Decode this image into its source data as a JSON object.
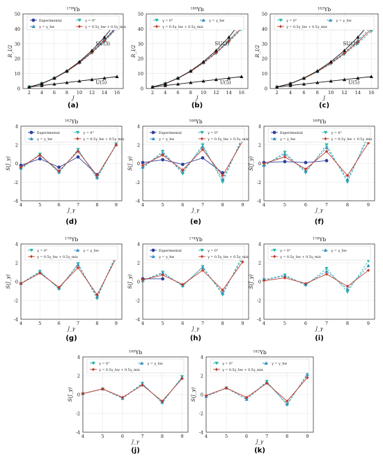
{
  "figure": {
    "captions": [
      "(a)",
      "(b)",
      "(c)",
      "(d)",
      "(e)",
      "(f)",
      "(g)",
      "(h)",
      "(i)",
      "(j)",
      "(k)"
    ]
  },
  "colors": {
    "experimental": "#2c3f9e",
    "gamma_zero": "#2ab7a9",
    "gamma_hw": "#3a8fbf",
    "gamma_mix": "#c0392b",
    "gamma_top": "#111111",
    "u5": "#111111"
  },
  "chart_data": [
    {
      "type": "line",
      "title": "178Yb",
      "xlabel": "J",
      "ylabel": "R_I/2",
      "xlim": [
        1,
        17
      ],
      "ylim": [
        0,
        50
      ],
      "xticks": [
        2,
        4,
        6,
        8,
        10,
        12,
        14,
        16
      ],
      "yticks": [
        0,
        10,
        20,
        30,
        40,
        50
      ],
      "x": [
        2,
        4,
        6,
        8,
        10,
        12,
        14,
        16
      ],
      "annotations": [
        {
          "text": "SU(3)",
          "x": 12.6,
          "y": 29
        },
        {
          "text": "U(5)",
          "x": 12.6,
          "y": 3
        }
      ],
      "legend": [
        "Experimental",
        "γ = 0°",
        "γ = γ_hw",
        "γ = 0.5γ_hw + 0.5γ_mix"
      ],
      "series": [
        {
          "name": "Experimental",
          "style": "exp",
          "values": [
            1,
            3.3,
            6.9,
            11.5,
            17.4,
            24.4,
            32.3,
            41.5
          ]
        },
        {
          "name": "γ = 0°",
          "style": "zero",
          "values": [
            1,
            3.3,
            6.8,
            11.4,
            17.1,
            23.8,
            31.5,
            40.1
          ]
        },
        {
          "name": "γ = γ_hw",
          "style": "hw",
          "values": [
            1,
            3.3,
            6.9,
            11.6,
            17.5,
            24.6,
            32.9,
            42.2
          ]
        },
        {
          "name": "γ = 0.5γ_hw + 0.5γ_mix",
          "style": "mix",
          "values": [
            1,
            3.3,
            6.9,
            11.5,
            17.3,
            24.2,
            32.1,
            41
          ]
        },
        {
          "name": "",
          "style": "top",
          "values": [
            1,
            3.3,
            7,
            11.8,
            18,
            25.5,
            34.4,
            45
          ]
        },
        {
          "name": "",
          "style": "u5",
          "values": [
            1,
            2,
            3,
            4,
            5,
            6,
            7,
            8
          ]
        }
      ]
    },
    {
      "type": "line",
      "title": "180Yb",
      "xlabel": "J",
      "ylabel": "R_I/2",
      "xlim": [
        1,
        17
      ],
      "ylim": [
        0,
        50
      ],
      "xticks": [
        2,
        4,
        6,
        8,
        10,
        12,
        14,
        16
      ],
      "yticks": [
        0,
        10,
        20,
        30,
        40,
        50
      ],
      "x": [
        2,
        4,
        6,
        8,
        10,
        12,
        14,
        16
      ],
      "annotations": [
        {
          "text": "SU(3)",
          "x": 11.8,
          "y": 29
        },
        {
          "text": "U(5)",
          "x": 12.6,
          "y": 3
        }
      ],
      "legend": [
        "γ = 0°",
        "γ = γ_hw",
        "γ = 0.5γ_hw + 0.5γ_mix"
      ],
      "series": [
        {
          "name": "γ = 0°",
          "style": "zero",
          "values": [
            1,
            3.3,
            6.8,
            11.4,
            17,
            23.6,
            31.2,
            39.7
          ]
        },
        {
          "name": "γ = γ_hw",
          "style": "hw",
          "values": [
            1,
            3.3,
            6.9,
            11.6,
            17.4,
            24.4,
            32.5,
            41.6
          ]
        },
        {
          "name": "γ = 0.5γ_hw + 0.5γ_mix",
          "style": "mix",
          "values": [
            1,
            3.3,
            6.9,
            11.5,
            17.2,
            24,
            31.8,
            40.5
          ]
        },
        {
          "name": "",
          "style": "top",
          "values": [
            1,
            3.3,
            7,
            11.8,
            18,
            25.5,
            34.4,
            45
          ]
        },
        {
          "name": "",
          "style": "u5",
          "values": [
            1,
            2,
            3,
            4,
            5,
            6,
            7,
            8
          ]
        }
      ]
    },
    {
      "type": "line",
      "title": "182Yb",
      "xlabel": "J",
      "ylabel": "R_I/2",
      "xlim": [
        1,
        17
      ],
      "ylim": [
        0,
        50
      ],
      "xticks": [
        2,
        4,
        6,
        8,
        10,
        12,
        14,
        16
      ],
      "yticks": [
        0,
        10,
        20,
        30,
        40,
        50
      ],
      "x": [
        2,
        4,
        6,
        8,
        10,
        12,
        14,
        16
      ],
      "annotations": [
        {
          "text": "SU(3)",
          "x": 11.8,
          "y": 29
        },
        {
          "text": "U(5)",
          "x": 12.6,
          "y": 3
        }
      ],
      "legend": [
        "γ = 0°",
        "γ = γ_hw",
        "γ = 0.5γ_hw + 0.5γ_mix"
      ],
      "series": [
        {
          "name": "γ = 0°",
          "style": "zero",
          "values": [
            1,
            3.3,
            6.7,
            11.2,
            16.6,
            23,
            30.2,
            38.4
          ]
        },
        {
          "name": "γ = γ_hw",
          "style": "hw",
          "values": [
            1,
            3.3,
            6.9,
            11.5,
            17.3,
            24.2,
            32.2,
            41.2
          ]
        },
        {
          "name": "γ = 0.5γ_hw + 0.5γ_mix",
          "style": "mix",
          "values": [
            1,
            3.3,
            6.8,
            11.4,
            17,
            23.6,
            31.2,
            39.8
          ]
        },
        {
          "name": "",
          "style": "top",
          "values": [
            1,
            3.3,
            7,
            11.8,
            18,
            25.5,
            34.4,
            45
          ]
        },
        {
          "name": "",
          "style": "u5",
          "values": [
            1,
            2,
            3,
            4,
            5,
            6,
            7,
            8
          ]
        }
      ]
    },
    {
      "type": "line",
      "title": "162Yb",
      "xlabel": "J_γ",
      "ylabel": "S(J_γ)",
      "xlim": [
        4,
        9.3
      ],
      "ylim": [
        -4,
        4
      ],
      "xticks": [
        4,
        5,
        6,
        7,
        8,
        9
      ],
      "yticks": [
        -4,
        -2,
        0,
        2,
        4
      ],
      "x": [
        4,
        5,
        6,
        7,
        8,
        9
      ],
      "legend": [
        "Experimental",
        "γ = 0°",
        "γ = γ_hw",
        "γ = 0.5γ_hw + 0.5γ_mix"
      ],
      "series": [
        {
          "name": "Experimental",
          "style": "exp",
          "x": [
            4,
            5,
            6,
            7,
            8
          ],
          "values": [
            -0.2,
            0.5,
            -0.4,
            0.7,
            -1.2
          ]
        },
        {
          "name": "γ = 0°",
          "style": "zero",
          "values": [
            -0.6,
            1,
            -1,
            1.5,
            -1.6,
            2.1
          ]
        },
        {
          "name": "γ = γ_hw",
          "style": "hw",
          "values": [
            -0.5,
            0.9,
            -0.9,
            1.4,
            -1.5,
            2
          ]
        },
        {
          "name": "γ = 0.5γ_hw + 0.5γ_mix",
          "style": "mix",
          "values": [
            -0.4,
            0.9,
            -0.8,
            1.3,
            -1.3,
            2
          ]
        }
      ]
    },
    {
      "type": "line",
      "title": "166Yb",
      "xlabel": "J_γ",
      "ylabel": "S(J_γ)",
      "xlim": [
        4,
        9.3
      ],
      "ylim": [
        -4,
        4
      ],
      "xticks": [
        4,
        5,
        6,
        7,
        8,
        9
      ],
      "yticks": [
        -4,
        -2,
        0,
        2,
        4
      ],
      "x": [
        4,
        5,
        6,
        7,
        8,
        9
      ],
      "legend": [
        "Experimental",
        "γ = 0°",
        "γ = γ_hw",
        "γ = 0.5γ_hw + 0.5γ_mix"
      ],
      "series": [
        {
          "name": "Experimental",
          "style": "exp",
          "x": [
            4,
            5,
            6,
            7,
            8
          ],
          "values": [
            0.1,
            0.4,
            -0.1,
            0.6,
            -1
          ]
        },
        {
          "name": "γ = 0°",
          "style": "zero",
          "values": [
            -0.5,
            1.3,
            -1.1,
            2,
            -2,
            2.9
          ]
        },
        {
          "name": "γ = γ_hw",
          "style": "hw",
          "values": [
            -0.4,
            1.1,
            -0.9,
            1.8,
            -1.7,
            2.7
          ]
        },
        {
          "name": "γ = 0.5γ_hw + 0.5γ_mix",
          "style": "mix",
          "values": [
            -0.2,
            0.9,
            -0.7,
            1.5,
            -1.3,
            2.4
          ]
        }
      ]
    },
    {
      "type": "line",
      "title": "168Yb",
      "xlabel": "J_γ",
      "ylabel": "S(J_γ)",
      "xlim": [
        4,
        9.3
      ],
      "ylim": [
        -4,
        4
      ],
      "xticks": [
        4,
        5,
        6,
        7,
        8,
        9
      ],
      "yticks": [
        -4,
        -2,
        0,
        2,
        4
      ],
      "x": [
        4,
        5,
        6,
        7,
        8,
        9
      ],
      "legend": [
        "Experimental",
        "γ = 0°",
        "γ = γ_hw",
        "γ = 0.5γ_hw + 0.5γ_mix"
      ],
      "series": [
        {
          "name": "Experimental",
          "style": "exp",
          "x": [
            4,
            5,
            6,
            7
          ],
          "values": [
            0.1,
            0.2,
            0.1,
            0.3
          ]
        },
        {
          "name": "γ = 0°",
          "style": "zero",
          "values": [
            -0.3,
            1.2,
            -1,
            2,
            -2,
            3.1
          ]
        },
        {
          "name": "γ = γ_hw",
          "style": "hw",
          "values": [
            -0.2,
            1,
            -0.8,
            1.7,
            -1.7,
            2.8
          ]
        },
        {
          "name": "γ = 0.5γ_hw + 0.5γ_mix",
          "style": "mix",
          "values": [
            0,
            0.7,
            -0.6,
            1.3,
            -1.3,
            2.2
          ]
        }
      ]
    },
    {
      "type": "line",
      "title": "170Yb",
      "xlabel": "J_γ",
      "ylabel": "S(J_γ)",
      "xlim": [
        4,
        9.3
      ],
      "ylim": [
        -4,
        4
      ],
      "xticks": [
        4,
        5,
        6,
        7,
        8,
        9
      ],
      "yticks": [
        -4,
        -2,
        0,
        2,
        4
      ],
      "x": [
        4,
        5,
        6,
        7,
        8,
        9
      ],
      "legend": [
        "γ = 0°",
        "γ = γ_hw",
        "γ = 0.5γ_hw + 0.5γ_mix"
      ],
      "series": [
        {
          "name": "γ = 0°",
          "style": "zero",
          "values": [
            -0.2,
            1.1,
            -0.8,
            1.9,
            -1.8,
            2.9
          ]
        },
        {
          "name": "γ = γ_hw",
          "style": "hw",
          "values": [
            -0.2,
            1,
            -0.7,
            1.8,
            -1.6,
            2.8
          ]
        },
        {
          "name": "γ = 0.5γ_hw + 0.5γ_mix",
          "style": "mix",
          "values": [
            -0.2,
            0.9,
            -0.6,
            1.5,
            -1.4,
            2.5
          ]
        }
      ]
    },
    {
      "type": "line",
      "title": "174Yb",
      "xlabel": "J_γ",
      "ylabel": "S(J_γ)",
      "xlim": [
        4,
        9.3
      ],
      "ylim": [
        -4,
        4
      ],
      "xticks": [
        4,
        5,
        6,
        7,
        8,
        9
      ],
      "yticks": [
        -4,
        -2,
        0,
        2,
        4
      ],
      "x": [
        4,
        5,
        6,
        7,
        8,
        9
      ],
      "legend": [
        "Experimental",
        "γ = 0°",
        "γ = γ_hw",
        "γ = 0.5γ_hw + 0.5γ_mix"
      ],
      "series": [
        {
          "name": "Experimental",
          "style": "exp",
          "x": [
            4,
            5
          ],
          "values": [
            0.3,
            0.3
          ]
        },
        {
          "name": "γ = 0°",
          "style": "zero",
          "values": [
            0.1,
            1,
            -0.5,
            1.6,
            -1.4,
            2.8
          ]
        },
        {
          "name": "γ = γ_hw",
          "style": "hw",
          "values": [
            0.1,
            0.9,
            -0.4,
            1.5,
            -1.2,
            2.5
          ]
        },
        {
          "name": "γ = 0.5γ_hw + 0.5γ_mix",
          "style": "mix",
          "values": [
            0.2,
            0.7,
            -0.3,
            1.2,
            -0.9,
            2.1
          ]
        }
      ]
    },
    {
      "type": "line",
      "title": "176Yb",
      "xlabel": "J_γ",
      "ylabel": "S(J_γ)",
      "xlim": [
        4,
        9.3
      ],
      "ylim": [
        -4,
        4
      ],
      "xticks": [
        4,
        5,
        6,
        7,
        8,
        9
      ],
      "yticks": [
        -4,
        -2,
        0,
        2,
        4
      ],
      "x": [
        4,
        5,
        6,
        7,
        8,
        9
      ],
      "legend": [
        "γ = 0°",
        "γ = γ_hw",
        "γ = 0.5γ_hw + 0.5γ_mix"
      ],
      "series": [
        {
          "name": "γ = 0°",
          "style": "zero",
          "values": [
            0.2,
            0.7,
            -0.4,
            1.4,
            -1.1,
            2.2
          ]
        },
        {
          "name": "γ = γ_hw",
          "style": "hw",
          "values": [
            0.2,
            0.6,
            -0.3,
            1.1,
            -0.8,
            1.7
          ]
        },
        {
          "name": "γ = 0.5γ_hw + 0.5γ_mix",
          "style": "mix",
          "values": [
            0.1,
            0.4,
            -0.2,
            0.8,
            -0.5,
            1.2
          ]
        }
      ]
    },
    {
      "type": "line",
      "title": "180Yb",
      "xlabel": "J_γ",
      "ylabel": "S(J_γ)",
      "xlim": [
        4,
        9.3
      ],
      "ylim": [
        -4,
        4
      ],
      "xticks": [
        4,
        5,
        6,
        7,
        8,
        9
      ],
      "yticks": [
        -4,
        -2,
        0,
        2,
        4
      ],
      "x": [
        4,
        5,
        6,
        7,
        8,
        9
      ],
      "legend": [
        "γ = 0°",
        "γ = γ_hw",
        "γ = 0.5γ_hw + 0.5γ_mix"
      ],
      "series": [
        {
          "name": "γ = 0°",
          "style": "zero",
          "values": [
            0.1,
            0.6,
            -0.4,
            1.2,
            -0.9,
            1.9
          ]
        },
        {
          "name": "γ = γ_hw",
          "style": "hw",
          "values": [
            0.1,
            0.6,
            -0.4,
            1.1,
            -0.8,
            1.8
          ]
        },
        {
          "name": "γ = 0.5γ_hw + 0.5γ_mix",
          "style": "mix",
          "values": [
            0.1,
            0.6,
            -0.3,
            1,
            -0.7,
            1.7
          ]
        }
      ]
    },
    {
      "type": "line",
      "title": "182Yb",
      "xlabel": "J_γ",
      "ylabel": "S(J_γ)",
      "xlim": [
        4,
        9.3
      ],
      "ylim": [
        -4,
        4
      ],
      "xticks": [
        4,
        5,
        6,
        7,
        8,
        9
      ],
      "yticks": [
        -4,
        -2,
        0,
        2,
        4
      ],
      "x": [
        4,
        5,
        6,
        7,
        8,
        9
      ],
      "legend": [
        "γ = 0°",
        "γ = γ_hw",
        "γ = 0.5γ_hw + 0.5γ_mix"
      ],
      "series": [
        {
          "name": "γ = 0°",
          "style": "zero",
          "values": [
            -0.2,
            0.7,
            -0.5,
            1.4,
            -1.1,
            2.2
          ]
        },
        {
          "name": "γ = γ_hw",
          "style": "hw",
          "values": [
            -0.2,
            0.7,
            -0.5,
            1.3,
            -1,
            2.1
          ]
        },
        {
          "name": "γ = 0.5γ_hw + 0.5γ_mix",
          "style": "mix",
          "values": [
            -0.1,
            0.7,
            -0.3,
            1.2,
            -0.7,
            1.8
          ]
        }
      ]
    }
  ]
}
